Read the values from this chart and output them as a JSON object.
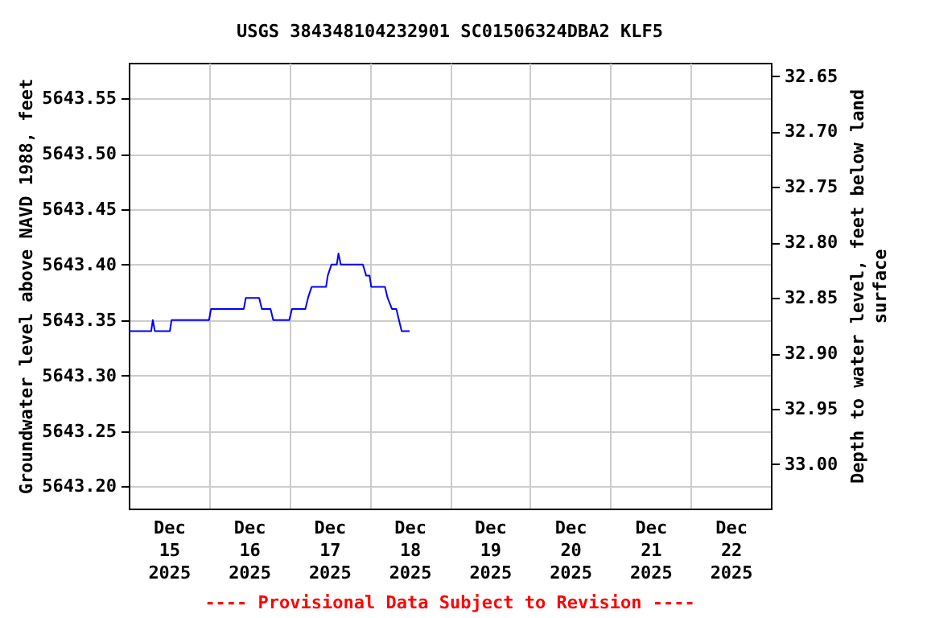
{
  "chart_data": {
    "type": "line",
    "title": "USGS 384348104232901 SC01506324DBA2 KLF5",
    "ylabel": "Groundwater level above NAVD 1988, feet",
    "y2label": "Depth to water level, feet below land\nsurface",
    "annotations": [
      "---- Provisional Data Subject to Revision ----"
    ],
    "series": [
      {
        "color": "#0000ff",
        "x": [
          "2025-12-15T00:00",
          "2025-12-15T06:42",
          "2025-12-15T07:12",
          "2025-12-15T07:48",
          "2025-12-15T12:18",
          "2025-12-15T12:48",
          "2025-12-16T00:00",
          "2025-12-16T00:36",
          "2025-12-16T10:24",
          "2025-12-16T11:00",
          "2025-12-16T15:00",
          "2025-12-16T15:48",
          "2025-12-16T18:24",
          "2025-12-16T19:12",
          "2025-12-17T00:00",
          "2025-12-17T00:48",
          "2025-12-17T04:48",
          "2025-12-17T05:36",
          "2025-12-17T06:42",
          "2025-12-17T11:00",
          "2025-12-17T11:30",
          "2025-12-17T12:36",
          "2025-12-17T14:12",
          "2025-12-17T14:42",
          "2025-12-17T15:24",
          "2025-12-17T22:00",
          "2025-12-17T23:00",
          "2025-12-18T00:00",
          "2025-12-18T00:30",
          "2025-12-18T04:36",
          "2025-12-18T05:24",
          "2025-12-18T06:42",
          "2025-12-18T08:00",
          "2025-12-18T08:48",
          "2025-12-18T09:36",
          "2025-12-18T12:00"
        ],
        "values": [
          5643.34,
          5643.34,
          5643.35,
          5643.34,
          5643.34,
          5643.35,
          5643.35,
          5643.36,
          5643.36,
          5643.37,
          5643.37,
          5643.36,
          5643.36,
          5643.35,
          5643.35,
          5643.36,
          5643.36,
          5643.37,
          5643.38,
          5643.38,
          5643.39,
          5643.4,
          5643.4,
          5643.41,
          5643.4,
          5643.4,
          5643.39,
          5643.39,
          5643.38,
          5643.38,
          5643.37,
          5643.36,
          5643.36,
          5643.35,
          5643.34,
          5643.34
        ]
      }
    ],
    "xlim": [
      "2025-12-15T00:00",
      "2025-12-23T00:00"
    ],
    "xticks": [
      {
        "value": "2025-12-15T12:00",
        "label": "Dec\n15\n2025"
      },
      {
        "value": "2025-12-16T12:00",
        "label": "Dec\n16\n2025"
      },
      {
        "value": "2025-12-17T12:00",
        "label": "Dec\n17\n2025"
      },
      {
        "value": "2025-12-18T12:00",
        "label": "Dec\n18\n2025"
      },
      {
        "value": "2025-12-19T12:00",
        "label": "Dec\n19\n2025"
      },
      {
        "value": "2025-12-20T12:00",
        "label": "Dec\n20\n2025"
      },
      {
        "value": "2025-12-21T12:00",
        "label": "Dec\n21\n2025"
      },
      {
        "value": "2025-12-22T12:00",
        "label": "Dec\n22\n2025"
      },
      {
        "value": "2025-12-16T00:00",
        "label": null
      },
      {
        "value": "2025-12-17T00:00",
        "label": null
      },
      {
        "value": "2025-12-18T00:00",
        "label": null
      },
      {
        "value": "2025-12-19T00:00",
        "label": null
      },
      {
        "value": "2025-12-20T00:00",
        "label": null
      },
      {
        "value": "2025-12-21T00:00",
        "label": null
      },
      {
        "value": "2025-12-22T00:00",
        "label": null
      }
    ],
    "ylim": [
      5643.18,
      5643.582
    ],
    "yticks": [
      {
        "value": 5643.2,
        "label": "5643.20"
      },
      {
        "value": 5643.25,
        "label": "5643.25"
      },
      {
        "value": 5643.3,
        "label": "5643.30"
      },
      {
        "value": 5643.35,
        "label": "5643.35"
      },
      {
        "value": 5643.4,
        "label": "5643.40"
      },
      {
        "value": 5643.45,
        "label": "5643.45"
      },
      {
        "value": 5643.5,
        "label": "5643.50"
      },
      {
        "value": 5643.55,
        "label": "5643.55"
      }
    ],
    "y2lim": [
      33.04,
      32.638
    ],
    "y2ticks": [
      {
        "value": 32.65,
        "label": "32.65"
      },
      {
        "value": 32.7,
        "label": "32.70"
      },
      {
        "value": 32.75,
        "label": "32.75"
      },
      {
        "value": 32.8,
        "label": "32.80"
      },
      {
        "value": 32.85,
        "label": "32.85"
      },
      {
        "value": 32.9,
        "label": "32.90"
      },
      {
        "value": 32.95,
        "label": "32.95"
      },
      {
        "value": 33.0,
        "label": "33.00"
      }
    ],
    "grid": true,
    "line_style": "solid",
    "marker": "none"
  }
}
